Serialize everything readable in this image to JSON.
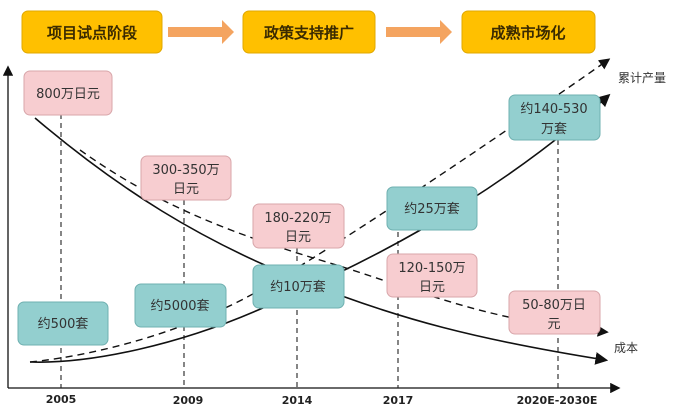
{
  "phases": [
    "项目试点阶段",
    "政策支持推广",
    "成熟市场化"
  ],
  "years": [
    "2005",
    "2009",
    "2014",
    "2017",
    "2020E-2030E"
  ],
  "cost_labels": [
    [
      "800万日元"
    ],
    [
      "300-350万",
      "日元"
    ],
    [
      "180-220万",
      "日元"
    ],
    [
      "120-150万",
      "日元"
    ],
    [
      "50-80万日",
      "元"
    ]
  ],
  "volume_labels": [
    [
      "约500套"
    ],
    [
      "约5000套"
    ],
    [
      "约10万套"
    ],
    [
      "约25万套"
    ],
    [
      "约140-530",
      "万套"
    ]
  ],
  "curve_labels": {
    "production": "累计产量",
    "cost": "成本"
  },
  "colors": {
    "phase": "#FFC000",
    "arrow": "#F4A460",
    "cost_box": "#F7CDD0",
    "volume_box": "#93CFCF"
  }
}
